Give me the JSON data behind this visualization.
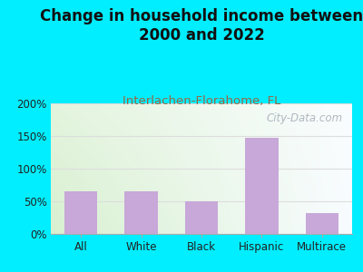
{
  "title": "Change in household income between\n2000 and 2022",
  "subtitle": "Interlachen-Florahome, FL",
  "categories": [
    "All",
    "White",
    "Black",
    "Hispanic",
    "Multirace"
  ],
  "values": [
    65,
    65,
    50,
    147,
    32
  ],
  "bar_color": "#c8a8d8",
  "title_fontsize": 12,
  "title_color": "#111111",
  "subtitle_fontsize": 9.5,
  "subtitle_color": "#996644",
  "background_outer": "#00eeff",
  "background_inner_left": "#d8f0d0",
  "background_inner_right": "#f5faff",
  "ylim": [
    0,
    200
  ],
  "yticks": [
    0,
    50,
    100,
    150,
    200
  ],
  "ytick_labels": [
    "0%",
    "50%",
    "100%",
    "150%",
    "200%"
  ],
  "grid_color": "#dddddd",
  "watermark": "City-Data.com",
  "watermark_color": "#b0b8c0",
  "watermark_fontsize": 8.5
}
